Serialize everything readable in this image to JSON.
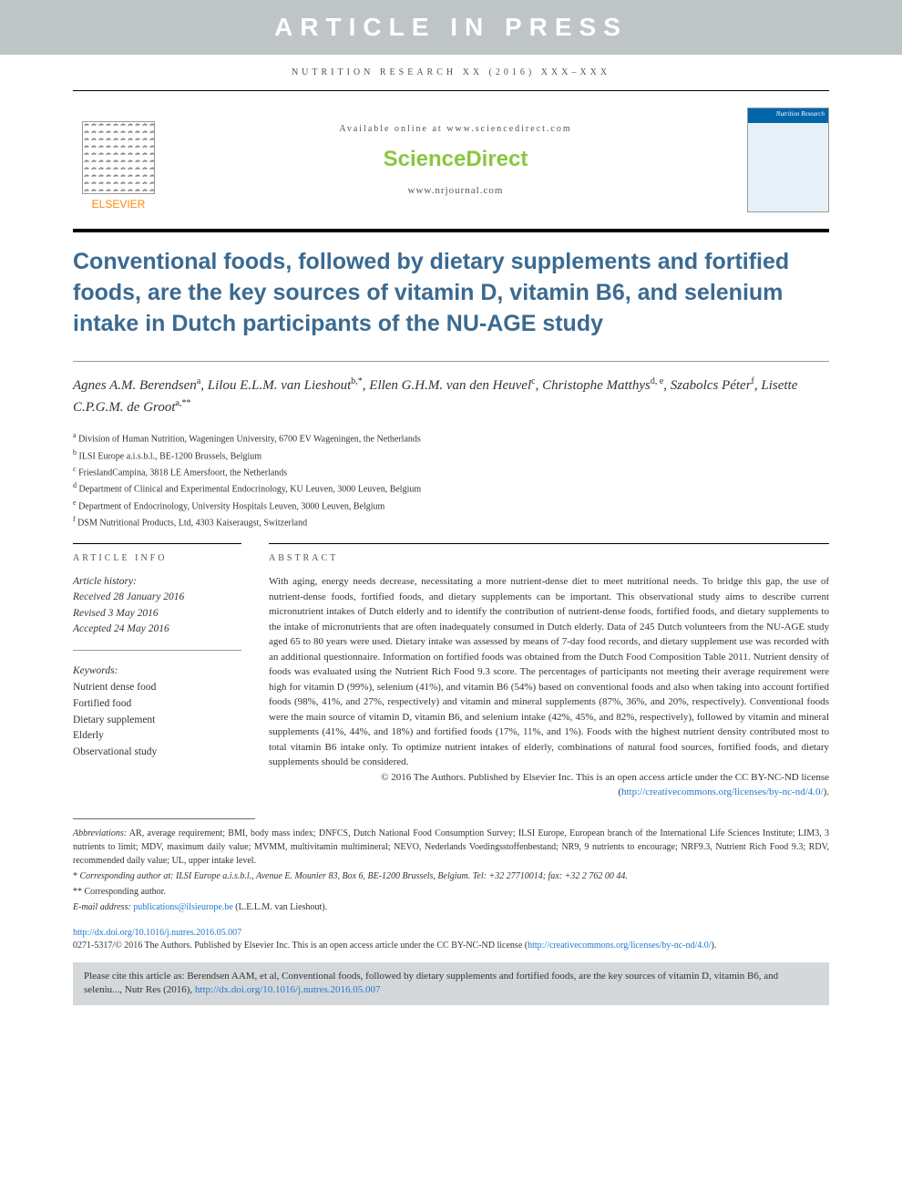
{
  "banner": "ARTICLE IN PRESS",
  "header_meta": "NUTRITION RESEARCH XX (2016) XXX–XXX",
  "masthead": {
    "elsevier": "ELSEVIER",
    "available": "Available online at www.sciencedirect.com",
    "sd_logo": "ScienceDirect",
    "journal_url": "www.nrjournal.com",
    "cover_title": "Nutrition Research"
  },
  "title": "Conventional foods, followed by dietary supplements and fortified foods, are the key sources of vitamin D, vitamin B6, and selenium intake in Dutch participants of the NU-AGE study",
  "authors_html": "Agnes A.M. Berendsen|a|, Lilou E.L.M. van Lieshout|b,*|, Ellen G.H.M. van den Heuvel|c|, Christophe Matthys|d, e|, Szabolcs Péter|f|, Lisette C.P.G.M. de Groot|a,**|",
  "authors": [
    {
      "name": "Agnes A.M. Berendsen",
      "sup": "a"
    },
    {
      "name": "Lilou E.L.M. van Lieshout",
      "sup": "b,*"
    },
    {
      "name": "Ellen G.H.M. van den Heuvel",
      "sup": "c"
    },
    {
      "name": "Christophe Matthys",
      "sup": "d, e"
    },
    {
      "name": "Szabolcs Péter",
      "sup": "f"
    },
    {
      "name": "Lisette C.P.G.M. de Groot",
      "sup": "a,**"
    }
  ],
  "affiliations": [
    {
      "sup": "a",
      "text": "Division of Human Nutrition, Wageningen University, 6700 EV Wageningen, the Netherlands"
    },
    {
      "sup": "b",
      "text": "ILSI Europe a.i.s.b.l., BE-1200 Brussels, Belgium"
    },
    {
      "sup": "c",
      "text": "FrieslandCampina, 3818 LE Amersfoort, the Netherlands"
    },
    {
      "sup": "d",
      "text": "Department of Clinical and Experimental Endocrinology, KU Leuven, 3000 Leuven, Belgium"
    },
    {
      "sup": "e",
      "text": "Department of Endocrinology, University Hospitals Leuven, 3000 Leuven, Belgium"
    },
    {
      "sup": "f",
      "text": "DSM Nutritional Products, Ltd, 4303 Kaiseraugst, Switzerland"
    }
  ],
  "article_info_label": "ARTICLE INFO",
  "abstract_label": "ABSTRACT",
  "history": {
    "label": "Article history:",
    "received": "Received 28 January 2016",
    "revised": "Revised 3 May 2016",
    "accepted": "Accepted 24 May 2016"
  },
  "keywords": {
    "label": "Keywords:",
    "items": [
      "Nutrient dense food",
      "Fortified food",
      "Dietary supplement",
      "Elderly",
      "Observational study"
    ]
  },
  "abstract": "With aging, energy needs decrease, necessitating a more nutrient-dense diet to meet nutritional needs. To bridge this gap, the use of nutrient-dense foods, fortified foods, and dietary supplements can be important. This observational study aims to describe current micronutrient intakes of Dutch elderly and to identify the contribution of nutrient-dense foods, fortified foods, and dietary supplements to the intake of micronutrients that are often inadequately consumed in Dutch elderly. Data of 245 Dutch volunteers from the NU-AGE study aged 65 to 80 years were used. Dietary intake was assessed by means of 7-day food records, and dietary supplement use was recorded with an additional questionnaire. Information on fortified foods was obtained from the Dutch Food Composition Table 2011. Nutrient density of foods was evaluated using the Nutrient Rich Food 9.3 score. The percentages of participants not meeting their average requirement were high for vitamin D (99%), selenium (41%), and vitamin B6 (54%) based on conventional foods and also when taking into account fortified foods (98%, 41%, and 27%, respectively) and vitamin and mineral supplements (87%, 36%, and 20%, respectively). Conventional foods were the main source of vitamin D, vitamin B6, and selenium intake (42%, 45%, and 82%, respectively), followed by vitamin and mineral supplements (41%, 44%, and 18%) and fortified foods (17%, 11%, and 1%). Foods with the highest nutrient density contributed most to total vitamin B6 intake only. To optimize nutrient intakes of elderly, combinations of natural food sources, fortified foods, and dietary supplements should be considered.",
  "copyright": "© 2016 The Authors. Published by Elsevier Inc. This is an open access article under the CC BY-NC-ND license (",
  "license_url": "http://creativecommons.org/licenses/by-nc-nd/4.0/",
  "copyright_close": ").",
  "abbreviations_label": "Abbreviations:",
  "abbreviations": " AR, average requirement; BMI, body mass index; DNFCS, Dutch National Food Consumption Survey; ILSI Europe, European branch of the International Life Sciences Institute; LIM3, 3 nutrients to limit; MDV, maximum daily value; MVMM, multivitamin multimineral; NEVO, Nederlands Voedingsstoffenbestand; NR9, 9 nutrients to encourage; NRF9.3, Nutrient Rich Food 9.3; RDV, recommended daily value; UL, upper intake level.",
  "corr1": "Corresponding author at: ILSI Europe a.i.s.b.l., Avenue E. Mounier 83, Box 6, BE-1200 Brussels, Belgium. Tel: +32 27710014; fax: +32 2 762 00 44.",
  "corr2": "Corresponding author.",
  "email_label": "E-mail address:",
  "email": "publications@ilsieurope.be",
  "email_attr": " (L.E.L.M. van Lieshout).",
  "doi": "http://dx.doi.org/10.1016/j.nutres.2016.05.007",
  "issn_line": "0271-5317/© 2016 The Authors. Published by Elsevier Inc. This is an open access article under the CC BY-NC-ND license (",
  "cite_prefix": "Please cite this article as: Berendsen AAM, et al, Conventional foods, followed by dietary supplements and fortified foods, are the key sources of vitamin D, vitamin B6, and seleniu..., Nutr Res (2016), ",
  "cite_doi": "http://dx.doi.org/10.1016/j.nutres.2016.05.007"
}
